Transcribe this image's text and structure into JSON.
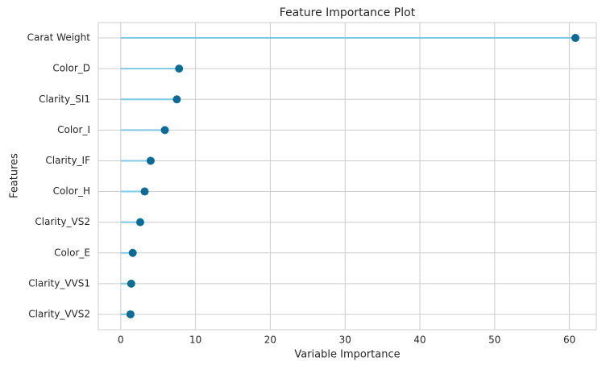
{
  "chart_data": {
    "type": "lollipop",
    "title": "Feature Importance Plot",
    "x_label": "Variable Importance",
    "y_label": "Features",
    "categories": [
      "Carat Weight",
      "Color_D",
      "Clarity_SI1",
      "Color_I",
      "Clarity_IF",
      "Color_H",
      "Clarity_VS2",
      "Color_E",
      "Clarity_VVS1",
      "Clarity_VVS2"
    ],
    "values": [
      60.8,
      7.8,
      7.5,
      5.9,
      4.0,
      3.2,
      2.6,
      1.6,
      1.4,
      1.3
    ],
    "stem_color": "#7ec8e3",
    "color": "#0e6b96",
    "xlim": [
      -3,
      63.6
    ],
    "xticks": [
      0,
      10,
      20,
      30,
      40,
      50,
      60
    ],
    "grid": true
  }
}
